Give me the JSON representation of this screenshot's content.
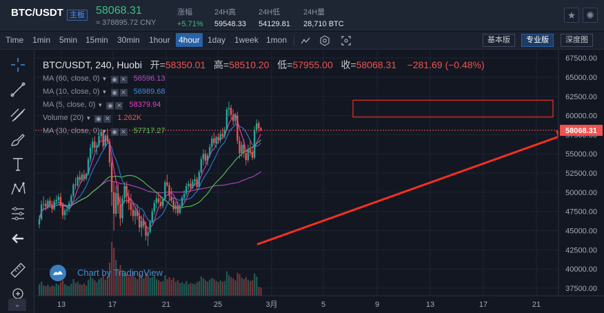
{
  "ticker": {
    "pair": "BTC/USDT",
    "badge": "主板",
    "price": "58068.31",
    "cny": "≈ 378895.72 CNY",
    "stats": [
      {
        "label": "涨幅",
        "value": "+5.71%"
      },
      {
        "label": "24H高",
        "value": "59548.33"
      },
      {
        "label": "24H低",
        "value": "54129.81"
      },
      {
        "label": "24H量",
        "value": "28,710 BTC"
      }
    ],
    "buttons": [
      {
        "icon": "star-icon",
        "glyph": "★"
      },
      {
        "icon": "sun-icon",
        "glyph": "✺"
      }
    ]
  },
  "toolbar": {
    "time_label": "Time",
    "intervals": [
      "1min",
      "5min",
      "15min",
      "30min",
      "1hour",
      "4hour",
      "1day",
      "1week",
      "1mon"
    ],
    "active_interval": "4hour",
    "icons": [
      "indicator-icon",
      "settings-icon",
      "fullscreen-icon"
    ],
    "views": [
      "基本版",
      "专业版",
      "深度图"
    ],
    "active_view": "专业版"
  },
  "tools": [
    "crosshair-icon",
    "trend-line-icon",
    "multi-line-icon",
    "brush-icon",
    "text-icon",
    "pattern-icon",
    "measure-icon",
    "back-arrow-icon",
    "ruler-icon",
    "zoom-icon"
  ],
  "legend": {
    "symbol": "BTC/USDT, 240, Huobi",
    "open_label": "开=",
    "open": "58350.01",
    "high_label": "高=",
    "high": "58510.20",
    "low_label": "低=",
    "low": "57955.00",
    "close_label": "收=",
    "close": "58068.31",
    "change": "−281.69 (−0.48%)",
    "studies": [
      {
        "label": "MA (60, close, 0)",
        "value": "56596.13",
        "color": "#b14fc2"
      },
      {
        "label": "MA (10, close, 0)",
        "value": "56989.68",
        "color": "#2f7ed8"
      },
      {
        "label": "MA (5, close, 0)",
        "value": "58379.94",
        "color": "#e040c0"
      },
      {
        "label": "Volume (20)",
        "value": "1.262K",
        "color": "#ef5350"
      },
      {
        "label": "MA (30, close, 0)",
        "value": "57717.27",
        "color": "#5acb54"
      }
    ]
  },
  "watermark": "Chart by TradingView",
  "collapse_glyph": "⌄",
  "colors": {
    "up": "#26a69a",
    "down": "#ef5350",
    "background": "#131722",
    "grid": "#1e2433",
    "price_line": "#ef5350",
    "annotation": "#f23020"
  },
  "chart_data": {
    "type": "candlestick",
    "title": "BTC/USDT, 240, Huobi",
    "ylim": [
      36500,
      68500
    ],
    "y_ticks": [
      67500,
      65000,
      62500,
      60000,
      57500,
      55000,
      52500,
      50000,
      47500,
      45000,
      42500,
      40000,
      37500
    ],
    "x_ticks": [
      "13",
      "17",
      "21",
      "25",
      "3月",
      "5",
      "9",
      "13",
      "17",
      "21"
    ],
    "last_price": 58068.31,
    "last_price_label": "58068.31",
    "candles": [
      [
        45800,
        47000,
        45300,
        46500
      ],
      [
        46500,
        48900,
        46300,
        48400
      ],
      [
        48400,
        49500,
        47800,
        48500
      ],
      [
        48500,
        49000,
        47600,
        48100
      ],
      [
        48100,
        49200,
        47800,
        48900
      ],
      [
        48900,
        49400,
        48000,
        48300
      ],
      [
        48300,
        48900,
        47300,
        47800
      ],
      [
        47800,
        49100,
        47600,
        48800
      ],
      [
        48800,
        49600,
        48400,
        49000
      ],
      [
        49000,
        49800,
        48600,
        49400
      ],
      [
        49400,
        49900,
        48000,
        48300
      ],
      [
        48300,
        48700,
        46500,
        47000
      ],
      [
        47000,
        47900,
        46400,
        47600
      ],
      [
        47600,
        48200,
        47000,
        47800
      ],
      [
        47800,
        48900,
        47400,
        48600
      ],
      [
        48600,
        49800,
        48300,
        49500
      ],
      [
        49500,
        51200,
        49300,
        51000
      ],
      [
        51000,
        51900,
        50400,
        50900
      ],
      [
        50900,
        52300,
        50700,
        52000
      ],
      [
        52000,
        52800,
        51200,
        51600
      ],
      [
        51600,
        52600,
        51300,
        52300
      ],
      [
        52300,
        52900,
        51400,
        51800
      ],
      [
        51800,
        52600,
        51500,
        52400
      ],
      [
        52400,
        54600,
        52200,
        54300
      ],
      [
        54300,
        56300,
        53900,
        55800
      ],
      [
        55800,
        57100,
        55000,
        56600
      ],
      [
        56600,
        57300,
        55300,
        55800
      ],
      [
        55800,
        56500,
        54900,
        56100
      ],
      [
        56100,
        57700,
        55800,
        57300
      ],
      [
        57300,
        58300,
        56900,
        57900
      ],
      [
        57900,
        58100,
        55600,
        56000
      ],
      [
        56000,
        57600,
        55800,
        57400
      ],
      [
        57400,
        58300,
        56300,
        56600
      ],
      [
        56600,
        57000,
        53300,
        53900
      ],
      [
        53900,
        54600,
        48200,
        50000
      ],
      [
        50000,
        51300,
        45000,
        47200
      ],
      [
        47200,
        50800,
        46800,
        49900
      ],
      [
        49900,
        51100,
        47200,
        48300
      ],
      [
        48300,
        49500,
        45600,
        46600
      ],
      [
        46600,
        49600,
        46000,
        49200
      ],
      [
        49200,
        51300,
        48600,
        50800
      ],
      [
        50800,
        51400,
        48500,
        49400
      ],
      [
        49400,
        50300,
        47700,
        48600
      ],
      [
        48600,
        49800,
        46900,
        47700
      ],
      [
        47700,
        48800,
        46200,
        46900
      ],
      [
        46900,
        48200,
        45800,
        47600
      ],
      [
        47600,
        48400,
        46400,
        46900
      ],
      [
        46900,
        47800,
        44800,
        45400
      ],
      [
        45400,
        47000,
        44200,
        46300
      ],
      [
        46300,
        47200,
        45200,
        45600
      ],
      [
        45600,
        46200,
        43700,
        44300
      ],
      [
        44300,
        45200,
        43000,
        44800
      ],
      [
        44800,
        46400,
        44600,
        46100
      ],
      [
        46100,
        47900,
        45900,
        47500
      ],
      [
        47500,
        49000,
        47100,
        48600
      ],
      [
        48600,
        49700,
        47900,
        49200
      ],
      [
        49200,
        50000,
        48400,
        48700
      ],
      [
        48700,
        49600,
        47800,
        48200
      ],
      [
        48200,
        49400,
        47900,
        49100
      ],
      [
        49100,
        51600,
        48900,
        51300
      ],
      [
        51300,
        52300,
        50700,
        50900
      ],
      [
        50900,
        51300,
        49000,
        49500
      ],
      [
        49500,
        50600,
        48600,
        48900
      ],
      [
        48900,
        49400,
        47400,
        47800
      ],
      [
        47800,
        48800,
        47200,
        48300
      ],
      [
        48300,
        48800,
        46900,
        47300
      ],
      [
        47300,
        48600,
        47100,
        48200
      ],
      [
        48200,
        49600,
        48000,
        49300
      ],
      [
        49300,
        50300,
        48800,
        49800
      ],
      [
        49800,
        51200,
        49500,
        50800
      ],
      [
        50800,
        51500,
        50300,
        51100
      ],
      [
        51100,
        51800,
        50200,
        50600
      ],
      [
        50600,
        51700,
        50400,
        51400
      ],
      [
        51400,
        52300,
        50800,
        51700
      ],
      [
        51700,
        52000,
        50300,
        50700
      ],
      [
        50700,
        52900,
        50500,
        52600
      ],
      [
        52600,
        54700,
        52400,
        54300
      ],
      [
        54300,
        55600,
        53500,
        55000
      ],
      [
        55000,
        55500,
        53700,
        54100
      ],
      [
        54100,
        55100,
        53500,
        54800
      ],
      [
        54800,
        56300,
        54500,
        55900
      ],
      [
        55900,
        57400,
        55400,
        57000
      ],
      [
        57000,
        57800,
        56100,
        56400
      ],
      [
        56400,
        57400,
        55800,
        57200
      ],
      [
        57200,
        57700,
        56300,
        56800
      ],
      [
        56800,
        58000,
        56400,
        57600
      ],
      [
        57600,
        58400,
        56900,
        57300
      ],
      [
        57300,
        58500,
        57000,
        58100
      ],
      [
        58100,
        61100,
        58000,
        60800
      ],
      [
        60800,
        61800,
        59900,
        61000
      ],
      [
        61000,
        61400,
        59600,
        60100
      ],
      [
        60100,
        60800,
        58700,
        59300
      ],
      [
        59300,
        60300,
        58800,
        60000
      ],
      [
        60000,
        60500,
        56300,
        56700
      ],
      [
        56700,
        57300,
        54400,
        55100
      ],
      [
        55100,
        56600,
        54600,
        56200
      ],
      [
        56200,
        56900,
        54500,
        55100
      ],
      [
        55100,
        55600,
        53500,
        54200
      ],
      [
        54200,
        56200,
        53900,
        55600
      ],
      [
        55600,
        56800,
        54700,
        55200
      ],
      [
        55200,
        56000,
        54200,
        54500
      ],
      [
        54500,
        58600,
        54300,
        58100
      ],
      [
        58100,
        59500,
        57700,
        59000
      ],
      [
        59000,
        59300,
        57800,
        58350
      ],
      [
        58350,
        58510,
        57955,
        58068.31
      ]
    ],
    "volumes": [
      1.8,
      2.2,
      1.6,
      1.5,
      1.7,
      1.4,
      1.6,
      1.5,
      1.9,
      1.7,
      2.1,
      2.4,
      1.8,
      1.6,
      1.5,
      1.9,
      2.6,
      2.0,
      2.2,
      1.8,
      1.7,
      1.9,
      1.6,
      2.5,
      3.0,
      2.7,
      2.4,
      2.1,
      2.6,
      2.8,
      3.2,
      2.5,
      3.0,
      5.2,
      8.4,
      7.5,
      5.6,
      4.2,
      4.8,
      4.0,
      3.6,
      3.4,
      3.0,
      3.2,
      3.8,
      2.9,
      2.6,
      3.5,
      3.1,
      2.7,
      3.6,
      3.3,
      2.8,
      2.9,
      3.1,
      2.6,
      2.4,
      2.2,
      2.3,
      3.2,
      2.6,
      2.9,
      2.5,
      2.8,
      2.2,
      2.4,
      2.0,
      2.1,
      1.9,
      2.3,
      1.8,
      2.0,
      1.9,
      1.8,
      2.1,
      2.3,
      3.0,
      2.7,
      2.4,
      2.2,
      2.5,
      2.8,
      2.6,
      2.3,
      2.1,
      2.4,
      2.2,
      2.3,
      3.8,
      3.2,
      2.9,
      2.7,
      2.4,
      3.6,
      3.4,
      2.8,
      2.6,
      2.9,
      2.5,
      2.3,
      2.4,
      3.5,
      3.0,
      1.4,
      1.262
    ]
  }
}
